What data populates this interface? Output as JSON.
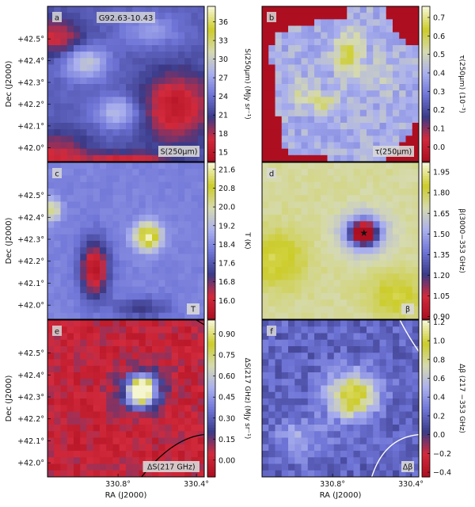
{
  "chart_data": [
    {
      "type": "heatmap",
      "panel_letter": "a",
      "object_name": "G92.63-10.43",
      "map_label": "S(250μm)",
      "colorbar_label": "S(250μm) (MJy sr⁻¹)",
      "colorbar_ticks": [
        "15",
        "18",
        "21",
        "24",
        "27",
        "30",
        "33",
        "36"
      ],
      "colorbar_range": [
        13.5,
        38.5
      ],
      "colormap": [
        "#ad0f20",
        "#d22a3c",
        "#3a3a88",
        "#6e74d6",
        "#aab0ee",
        "#d6dab0",
        "#cccc2a",
        "#f5f5d0"
      ],
      "yticks": [
        "+42.0°",
        "+42.1°",
        "+42.2°",
        "+42.3°",
        "+42.4°",
        "+42.5°"
      ],
      "ylabel": "Dec (J2000)",
      "blobs": [
        {
          "cx": 0.24,
          "cy": 0.36,
          "rx": 0.16,
          "ry": 0.12,
          "v": 30
        },
        {
          "cx": 0.66,
          "cy": 0.16,
          "rx": 0.2,
          "ry": 0.1,
          "v": 27
        },
        {
          "cx": 0.45,
          "cy": 0.68,
          "rx": 0.16,
          "ry": 0.12,
          "v": 29
        },
        {
          "cx": 0.06,
          "cy": 0.2,
          "rx": 0.2,
          "ry": 0.14,
          "v": 17
        },
        {
          "cx": 0.82,
          "cy": 0.65,
          "rx": 0.26,
          "ry": 0.26,
          "v": 15
        },
        {
          "cx": 0.05,
          "cy": 0.97,
          "rx": 0.25,
          "ry": 0.18,
          "v": 17
        },
        {
          "cx": 0.5,
          "cy": 1.02,
          "rx": 0.3,
          "ry": 0.08,
          "v": 14
        }
      ],
      "base": 23
    },
    {
      "type": "heatmap",
      "panel_letter": "b",
      "map_label": "τ(250μm)",
      "colorbar_label": "τ(250μm) (10⁻³)",
      "colorbar_ticks": [
        "0.0",
        "0.1",
        "0.2",
        "0.3",
        "0.4",
        "0.5",
        "0.6",
        "0.7"
      ],
      "colorbar_range": [
        -0.08,
        0.76
      ],
      "colormap": [
        "#ad0f20",
        "#d22a3c",
        "#3a3a88",
        "#6e74d6",
        "#aab0ee",
        "#d6dab0",
        "#cccc2a",
        "#f5f5d0"
      ],
      "yticks": [],
      "blobs": [
        {
          "cx": 0.55,
          "cy": 0.3,
          "rx": 0.1,
          "ry": 0.15,
          "v": 0.62
        },
        {
          "cx": 0.4,
          "cy": 0.62,
          "rx": 0.1,
          "ry": 0.07,
          "v": 0.58
        },
        {
          "cx": 0.25,
          "cy": 0.55,
          "rx": 0.1,
          "ry": 0.1,
          "v": 0.5
        },
        {
          "cx": 0.75,
          "cy": 0.45,
          "rx": 0.12,
          "ry": 0.12,
          "v": 0.48
        }
      ],
      "base": 0.4
    },
    {
      "type": "heatmap",
      "panel_letter": "c",
      "map_label": "T",
      "colorbar_label": "T (K)",
      "colorbar_ticks": [
        "16.0",
        "16.8",
        "17.6",
        "18.4",
        "19.2",
        "20.0",
        "20.8",
        "21.6"
      ],
      "colorbar_range": [
        15.2,
        21.9
      ],
      "colormap": [
        "#ad0f20",
        "#d22a3c",
        "#3a3a88",
        "#6e74d6",
        "#aab0ee",
        "#d6dab0",
        "#cccc2a",
        "#f5f5d0"
      ],
      "yticks": [
        "+42.0°",
        "+42.1°",
        "+42.2°",
        "+42.3°",
        "+42.4°",
        "+42.5°"
      ],
      "ylabel": "Dec (J2000)",
      "blobs": [
        {
          "cx": 0.64,
          "cy": 0.47,
          "rx": 0.1,
          "ry": 0.1,
          "v": 21.7
        },
        {
          "cx": 0.3,
          "cy": 0.68,
          "rx": 0.1,
          "ry": 0.2,
          "v": 15.4
        },
        {
          "cx": 0.03,
          "cy": 0.3,
          "rx": 0.06,
          "ry": 0.08,
          "v": 20.4
        },
        {
          "cx": 0.6,
          "cy": 0.93,
          "rx": 0.2,
          "ry": 0.08,
          "v": 17.2
        }
      ],
      "base": 18.3
    },
    {
      "type": "heatmap",
      "panel_letter": "d",
      "map_label": "β",
      "colorbar_label": "β(3000−353 GHz)",
      "colorbar_ticks": [
        "0.90",
        "1.05",
        "1.20",
        "1.35",
        "1.50",
        "1.65",
        "1.80",
        "1.95"
      ],
      "colorbar_range": [
        0.88,
        2.02
      ],
      "colormap": [
        "#ad0f20",
        "#d22a3c",
        "#3a3a88",
        "#6e74d6",
        "#aab0ee",
        "#d6dab0",
        "#cccc2a",
        "#f5f5d0"
      ],
      "yticks": [],
      "blobs": [
        {
          "cx": 0.65,
          "cy": 0.45,
          "rx": 0.08,
          "ry": 0.07,
          "v": 0.85
        },
        {
          "cx": 0.65,
          "cy": 0.45,
          "rx": 0.16,
          "ry": 0.14,
          "v": 1.3
        },
        {
          "cx": 0.1,
          "cy": 0.62,
          "rx": 0.2,
          "ry": 0.2,
          "v": 1.9
        },
        {
          "cx": 0.85,
          "cy": 0.85,
          "rx": 0.2,
          "ry": 0.15,
          "v": 1.88
        }
      ],
      "base": 1.72
    },
    {
      "type": "heatmap",
      "panel_letter": "e",
      "map_label": "ΔS(217 GHz)",
      "colorbar_label": "ΔS(217 GHz) (MJy sr⁻¹)",
      "colorbar_ticks": [
        "0.00",
        "0.15",
        "0.30",
        "0.45",
        "0.60",
        "0.75",
        "0.90"
      ],
      "colorbar_range": [
        -0.12,
        1.0
      ],
      "colormap": [
        "#ad0f20",
        "#d22a3c",
        "#3a3a88",
        "#6e74d6",
        "#aab0ee",
        "#d6dab0",
        "#cccc2a",
        "#f5f5d0"
      ],
      "yticks": [
        "+42.0°",
        "+42.1°",
        "+42.2°",
        "+42.3°",
        "+42.4°",
        "+42.5°"
      ],
      "ylabel": "Dec (J2000)",
      "blobs": [
        {
          "cx": 0.6,
          "cy": 0.45,
          "rx": 0.08,
          "ry": 0.08,
          "v": 1.0
        },
        {
          "cx": 0.6,
          "cy": 0.45,
          "rx": 0.16,
          "ry": 0.16,
          "v": 0.45
        }
      ],
      "base": 0.02
    },
    {
      "type": "heatmap",
      "panel_letter": "f",
      "map_label": "Δβ",
      "colorbar_label": "Δβ (217 −353 GHz)",
      "colorbar_ticks": [
        "−0.4",
        "−0.2",
        "0.0",
        "0.2",
        "0.4",
        "0.6",
        "0.8",
        "1.0",
        "1.2"
      ],
      "colorbar_range": [
        -0.45,
        1.22
      ],
      "colormap": [
        "#ad0f20",
        "#d22a3c",
        "#3a3a88",
        "#6e74d6",
        "#aab0ee",
        "#d6dab0",
        "#cccc2a",
        "#f5f5d0"
      ],
      "yticks": [],
      "blobs": [
        {
          "cx": 0.58,
          "cy": 0.48,
          "rx": 0.18,
          "ry": 0.17,
          "v": 1.0
        },
        {
          "cx": 0.58,
          "cy": 0.48,
          "rx": 0.1,
          "ry": 0.09,
          "v": 0.35
        },
        {
          "cx": 0.25,
          "cy": 0.75,
          "rx": 0.2,
          "ry": 0.15,
          "v": 0.45
        }
      ],
      "base": 0.2
    }
  ],
  "xticks": [
    "330.8°",
    "330.4°"
  ],
  "xlabel": "RA (J2000)"
}
